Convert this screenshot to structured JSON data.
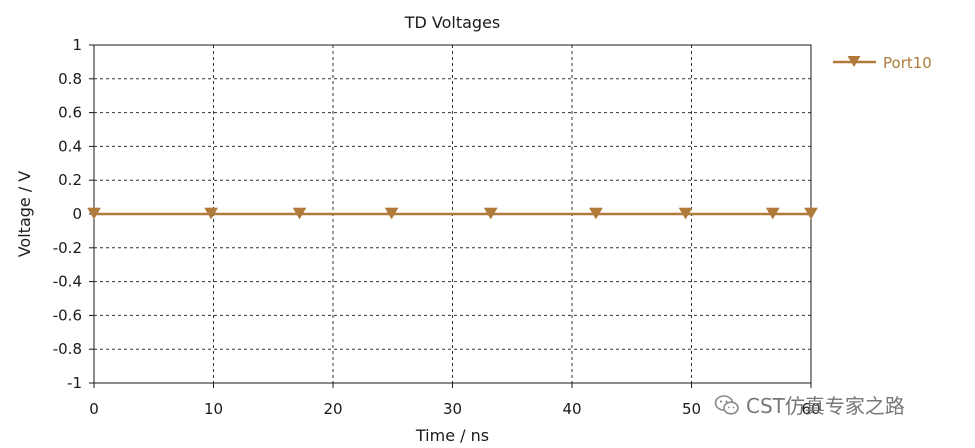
{
  "chart_data": {
    "type": "line",
    "title": "TD Voltages",
    "xlabel": "Time / ns",
    "ylabel": "Voltage / V",
    "xlim": [
      0,
      60
    ],
    "ylim": [
      -1,
      1
    ],
    "x_ticks": [
      0,
      10,
      20,
      30,
      40,
      50,
      60
    ],
    "y_ticks": [
      1,
      0.8,
      0.6,
      0.4,
      0.2,
      0,
      -0.2,
      -0.4,
      -0.6,
      -0.8,
      -1
    ],
    "y_tick_labels": [
      "1",
      "0.8",
      "0.6",
      "0.4",
      "0.2",
      "0",
      "-0.2",
      "-0.4",
      "-0.6",
      "-0.8",
      "-1"
    ],
    "grid": true,
    "legend_position": "top-right",
    "series": [
      {
        "name": "Port10",
        "color": "#b07a3a",
        "marker": "triangle-down",
        "x": [
          0,
          60
        ],
        "y": [
          0,
          0
        ],
        "marker_x": [
          0,
          9.8,
          17.2,
          24.9,
          33.2,
          42.0,
          49.5,
          56.8,
          60
        ],
        "marker_y": [
          0,
          0,
          0,
          0,
          0,
          0,
          0,
          0,
          0
        ]
      }
    ]
  },
  "watermark": {
    "text": "CST仿真专家之路",
    "icon": "wechat-icon"
  }
}
